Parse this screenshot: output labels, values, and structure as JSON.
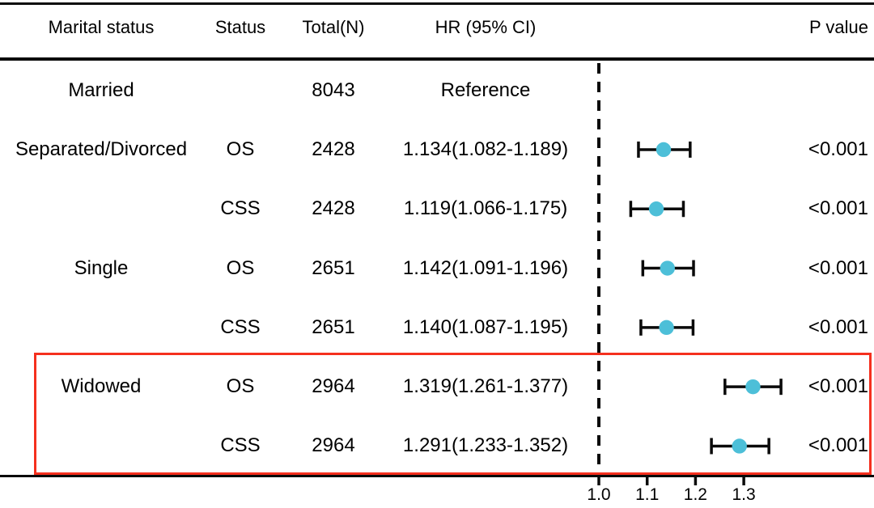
{
  "table": {
    "headers": {
      "marital": "Marital status",
      "status": "Status",
      "total": "Total(N)",
      "hr": "HR (95% CI)",
      "p": "P value"
    },
    "rows": [
      {
        "marital": "Married",
        "status": "",
        "total": "8043",
        "hr_text": "Reference",
        "p": ""
      },
      {
        "marital": "Separated/Divorced",
        "status": "OS",
        "total": "2428",
        "hr_text": "1.134(1.082-1.189)",
        "p": "<0.001"
      },
      {
        "marital": "",
        "status": "CSS",
        "total": "2428",
        "hr_text": "1.119(1.066-1.175)",
        "p": "<0.001"
      },
      {
        "marital": "Single",
        "status": "OS",
        "total": "2651",
        "hr_text": "1.142(1.091-1.196)",
        "p": "<0.001"
      },
      {
        "marital": "",
        "status": "CSS",
        "total": "2651",
        "hr_text": "1.140(1.087-1.195)",
        "p": "<0.001"
      },
      {
        "marital": "Widowed",
        "status": "OS",
        "total": "2964",
        "hr_text": "1.319(1.261-1.377)",
        "p": "<0.001"
      },
      {
        "marital": "",
        "status": "CSS",
        "total": "2964",
        "hr_text": "1.291(1.233-1.352)",
        "p": "<0.001"
      }
    ]
  },
  "axis": {
    "ticks": [
      "1.0",
      "1.1",
      "1.2",
      "1.3"
    ],
    "tick_values": [
      1.0,
      1.1,
      1.2,
      1.3
    ],
    "reference_value": 1.0
  },
  "colors": {
    "marker": "#4DBFD8",
    "error_bar": "#0a0a0a",
    "highlight_box": "#F5301E",
    "dashed_line": "#0a0a0a",
    "text": "#000000"
  },
  "chart_data": {
    "type": "scatter",
    "subtype": "forest-plot",
    "title": "",
    "xlabel": "",
    "x_ticks": [
      1.0,
      1.1,
      1.2,
      1.3
    ],
    "xlim": [
      0.94,
      1.57
    ],
    "reference_line": 1.0,
    "reference_row": {
      "label": "Married",
      "n": 8043,
      "hr_text": "Reference"
    },
    "points": [
      {
        "row": 1,
        "label": "Separated/Divorced",
        "status": "OS",
        "n": 2428,
        "hr": 1.134,
        "ci_low": 1.082,
        "ci_high": 1.189,
        "p": "<0.001"
      },
      {
        "row": 2,
        "label": "Separated/Divorced",
        "status": "CSS",
        "n": 2428,
        "hr": 1.119,
        "ci_low": 1.066,
        "ci_high": 1.175,
        "p": "<0.001"
      },
      {
        "row": 3,
        "label": "Single",
        "status": "OS",
        "n": 2651,
        "hr": 1.142,
        "ci_low": 1.091,
        "ci_high": 1.196,
        "p": "<0.001"
      },
      {
        "row": 4,
        "label": "Single",
        "status": "CSS",
        "n": 2651,
        "hr": 1.14,
        "ci_low": 1.087,
        "ci_high": 1.195,
        "p": "<0.001"
      },
      {
        "row": 5,
        "label": "Widowed",
        "status": "OS",
        "n": 2964,
        "hr": 1.319,
        "ci_low": 1.261,
        "ci_high": 1.377,
        "p": "<0.001"
      },
      {
        "row": 6,
        "label": "Widowed",
        "status": "CSS",
        "n": 2964,
        "hr": 1.291,
        "ci_low": 1.233,
        "ci_high": 1.352,
        "p": "<0.001"
      }
    ],
    "highlighted_rows": [
      5,
      6
    ],
    "grid": false,
    "legend": false
  }
}
